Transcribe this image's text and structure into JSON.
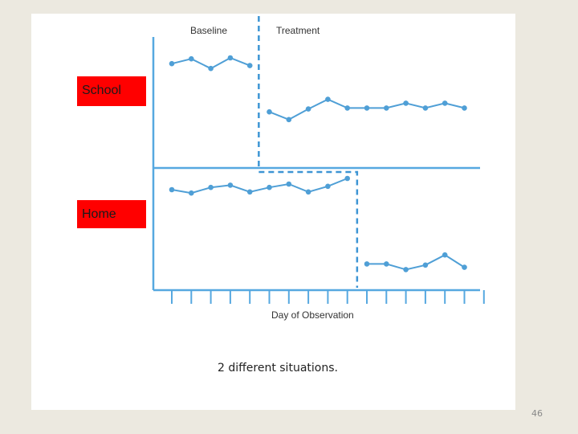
{
  "slide": {
    "caption": "2 different situations.",
    "page_number": "46"
  },
  "chart_data": {
    "type": "line",
    "title": "",
    "xlabel": "Day of Observation",
    "phase_labels": [
      "Baseline",
      "Treatment"
    ],
    "tick_count": 17,
    "colors": {
      "line": "#4f9fd6",
      "axis": "#56a8e0",
      "label_bg": "#ff0000"
    },
    "panels": [
      {
        "name": "School",
        "series_label": "School",
        "phase_change_after_day": 5,
        "ylim": [
          0,
          10
        ],
        "x": [
          1,
          2,
          3,
          4,
          5,
          6,
          7,
          8,
          9,
          10,
          11,
          12,
          13,
          14,
          15,
          16
        ],
        "values": [
          8.4,
          8.9,
          7.9,
          9.0,
          8.2,
          3.4,
          2.6,
          3.7,
          4.7,
          3.8,
          3.8,
          3.8,
          4.3,
          3.8,
          4.3,
          3.8
        ]
      },
      {
        "name": "Home",
        "series_label": "Home",
        "phase_change_after_day": 10,
        "ylim": [
          0,
          10
        ],
        "x": [
          1,
          2,
          3,
          4,
          5,
          6,
          7,
          8,
          9,
          10,
          11,
          12,
          13,
          14,
          15,
          16
        ],
        "values": [
          8.5,
          8.2,
          8.7,
          8.9,
          8.3,
          8.7,
          9.0,
          8.3,
          8.8,
          9.5,
          1.9,
          1.9,
          1.4,
          1.8,
          2.7,
          1.6
        ]
      }
    ]
  }
}
